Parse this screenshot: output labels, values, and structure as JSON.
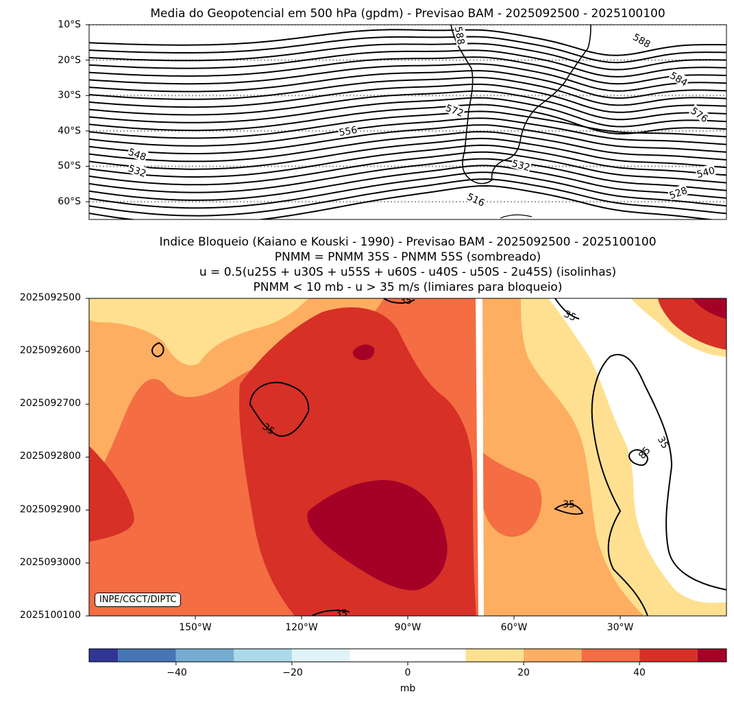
{
  "chart_data": [
    {
      "type": "contour",
      "title": "Media do Geopotencial em 500 hPa (gpdm) - Previsao BAM - 2025092500 - 2025100100",
      "y_ticks": [
        "10°S",
        "20°S",
        "30°S",
        "40°S",
        "50°S",
        "60°S"
      ],
      "y_range_deg_lat": [
        -10,
        -65
      ],
      "contour_labels": [
        "588",
        "584",
        "576",
        "572",
        "556",
        "548",
        "532",
        "532",
        "516",
        "540",
        "528",
        "588"
      ],
      "contour_levels_gpdm": {
        "min": 500,
        "max": 592,
        "step": 4
      },
      "gridlines": "dotted at 10° latitude"
    },
    {
      "type": "filled_contour",
      "title_lines": [
        "Indice Bloqueio (Kaiano e Kouski - 1990) - Previsao BAM - 2025092500 - 2025100100",
        "PNMM = PNMM 35S - PNMM 55S (sombreado)",
        "u = 0.5(u25S + u30S + u55S + u60S - u40S - u50S - 2u45S) (isolinhas)",
        "PNMM < 10 mb - u > 35 m/s (limiares para bloqueio)"
      ],
      "y_ticks": [
        "2025092500",
        "2025092600",
        "2025092700",
        "2025092800",
        "2025092900",
        "2025093000",
        "2025100100"
      ],
      "x_ticks": [
        "150°W",
        "120°W",
        "90°W",
        "60°W",
        "30°W"
      ],
      "x_tick_values_deg_lon": [
        -150,
        -120,
        -90,
        -60,
        -30
      ],
      "x_range_deg_lon": [
        -180,
        0
      ],
      "contour_labels": [
        "35",
        "35",
        "35",
        "35",
        "35",
        "35",
        "85"
      ],
      "shading_levels_mb": [
        -55,
        -50,
        -40,
        -30,
        -20,
        -10,
        10,
        20,
        30,
        40,
        50,
        55
      ]
    },
    {
      "type": "colorbar",
      "tick_labels": [
        "−40",
        "−20",
        "0",
        "20",
        "40"
      ],
      "tick_values": [
        -40,
        -20,
        0,
        20,
        40
      ],
      "range": [
        -55,
        55
      ],
      "boundaries": [
        -55,
        -50,
        -40,
        -30,
        -20,
        -10,
        10,
        20,
        30,
        40,
        50,
        55
      ],
      "colors": [
        "#313695",
        "#4575b4",
        "#74add1",
        "#abd9e9",
        "#e0f3f8",
        "#ffffff",
        "#fee090",
        "#fdae61",
        "#f46d43",
        "#d73027",
        "#a50026"
      ],
      "label": "mb"
    }
  ],
  "credit": "INPE/CGCT/DIPTC"
}
